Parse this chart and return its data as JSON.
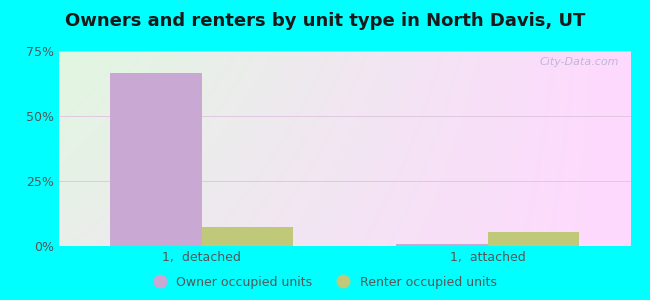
{
  "title": "Owners and renters by unit type in North Davis, UT",
  "categories": [
    "1,  detached",
    "1,  attached"
  ],
  "owner_values": [
    66.5,
    0.8
  ],
  "renter_values": [
    7.5,
    5.5
  ],
  "owner_color": "#c9a8d4",
  "renter_color": "#c0c87a",
  "ylim": [
    0,
    75
  ],
  "yticks": [
    0,
    25,
    50,
    75
  ],
  "ytick_labels": [
    "0%",
    "25%",
    "50%",
    "75%"
  ],
  "bar_width": 0.32,
  "outer_bg": "#00ffff",
  "watermark": "City-Data.com",
  "legend_labels": [
    "Owner occupied units",
    "Renter occupied units"
  ],
  "title_fontsize": 13,
  "tick_fontsize": 9,
  "legend_fontsize": 9,
  "grid_color": "#e0c8e0",
  "tick_color": "#555555"
}
